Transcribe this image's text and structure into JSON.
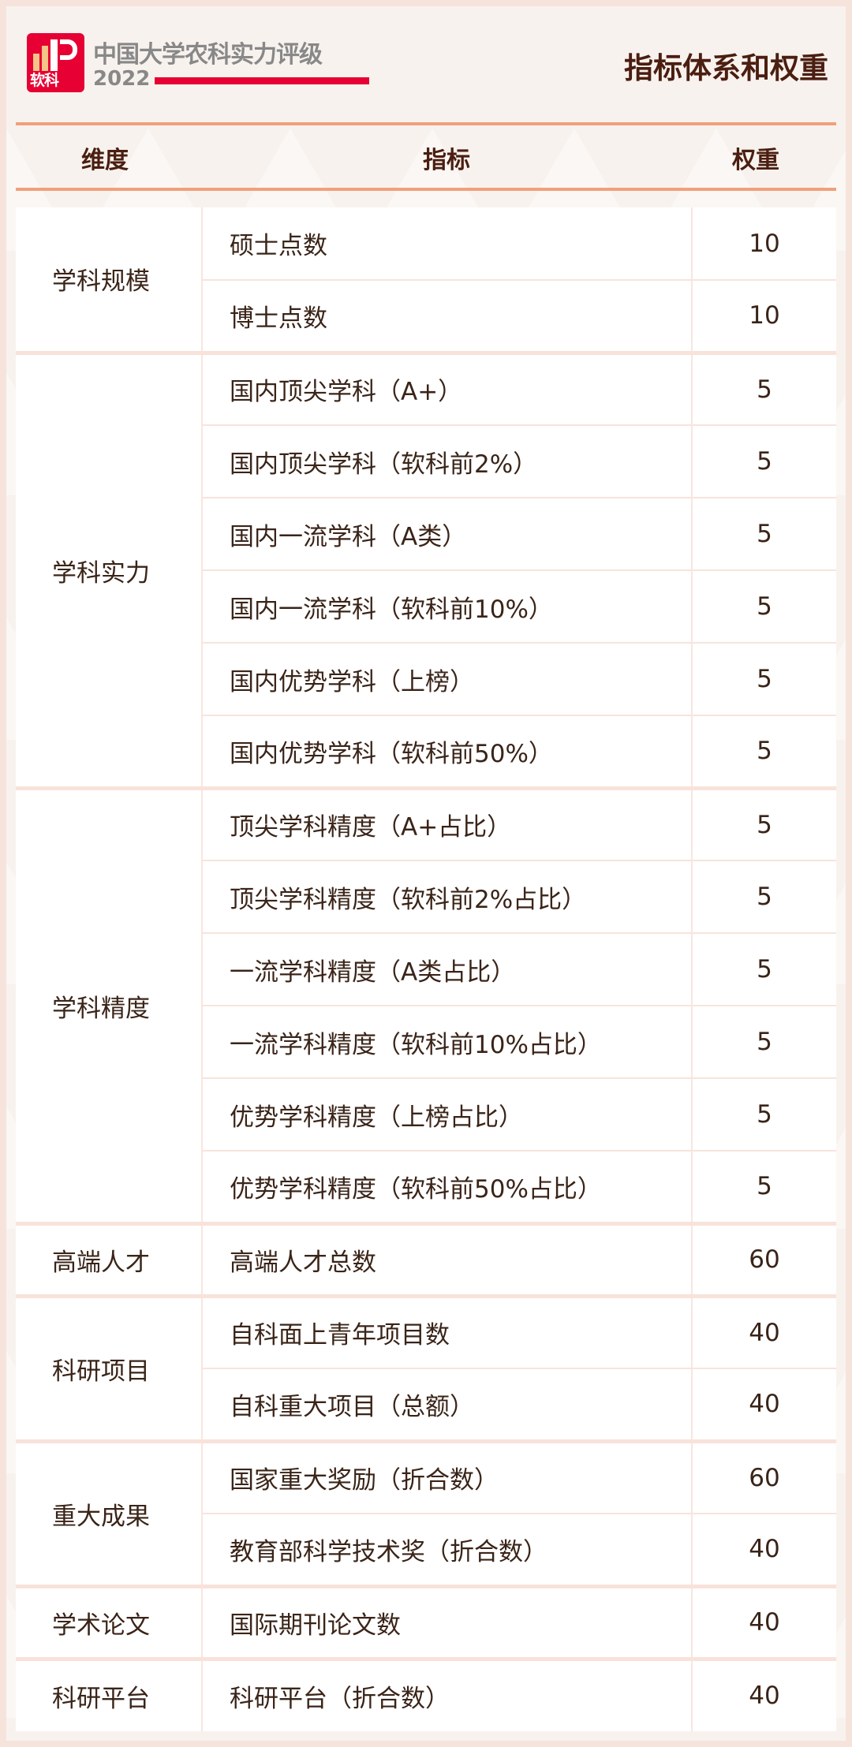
{
  "brand": {
    "title": "中国大学农科实力评级",
    "year": "2022",
    "logo_text": "软科"
  },
  "page_title": "指标体系和权重",
  "header": {
    "dimension": "维度",
    "indicator": "指标",
    "weight": "权重"
  },
  "colors": {
    "accent": "#e60033",
    "rule": "#f0a07c",
    "text": "#3a2418",
    "title": "#4a1e10"
  },
  "groups": [
    {
      "dimension": "学科规模",
      "items": [
        {
          "indicator": "硕士点数",
          "weight": "10"
        },
        {
          "indicator": "博士点数",
          "weight": "10"
        }
      ]
    },
    {
      "dimension": "学科实力",
      "items": [
        {
          "indicator": "国内顶尖学科（A+）",
          "weight": "5"
        },
        {
          "indicator": "国内顶尖学科（软科前2%）",
          "weight": "5"
        },
        {
          "indicator": "国内一流学科（A类）",
          "weight": "5"
        },
        {
          "indicator": "国内一流学科（软科前10%）",
          "weight": "5"
        },
        {
          "indicator": "国内优势学科（上榜）",
          "weight": "5"
        },
        {
          "indicator": "国内优势学科（软科前50%）",
          "weight": "5"
        }
      ]
    },
    {
      "dimension": "学科精度",
      "items": [
        {
          "indicator": "顶尖学科精度（A+占比）",
          "weight": "5"
        },
        {
          "indicator": "顶尖学科精度（软科前2%占比）",
          "weight": "5"
        },
        {
          "indicator": "一流学科精度（A类占比）",
          "weight": "5"
        },
        {
          "indicator": "一流学科精度（软科前10%占比）",
          "weight": "5"
        },
        {
          "indicator": "优势学科精度（上榜占比）",
          "weight": "5"
        },
        {
          "indicator": "优势学科精度（软科前50%占比）",
          "weight": "5"
        }
      ]
    },
    {
      "dimension": "高端人才",
      "items": [
        {
          "indicator": "高端人才总数",
          "weight": "60"
        }
      ]
    },
    {
      "dimension": "科研项目",
      "items": [
        {
          "indicator": "自科面上青年项目数",
          "weight": "40"
        },
        {
          "indicator": "自科重大项目（总额）",
          "weight": "40"
        }
      ]
    },
    {
      "dimension": "重大成果",
      "items": [
        {
          "indicator": "国家重大奖励（折合数）",
          "weight": "60"
        },
        {
          "indicator": "教育部科学技术奖（折合数）",
          "weight": "40"
        }
      ]
    },
    {
      "dimension": "学术论文",
      "items": [
        {
          "indicator": "国际期刊论文数",
          "weight": "40"
        }
      ]
    },
    {
      "dimension": "科研平台",
      "items": [
        {
          "indicator": "科研平台（折合数）",
          "weight": "40"
        }
      ]
    }
  ]
}
